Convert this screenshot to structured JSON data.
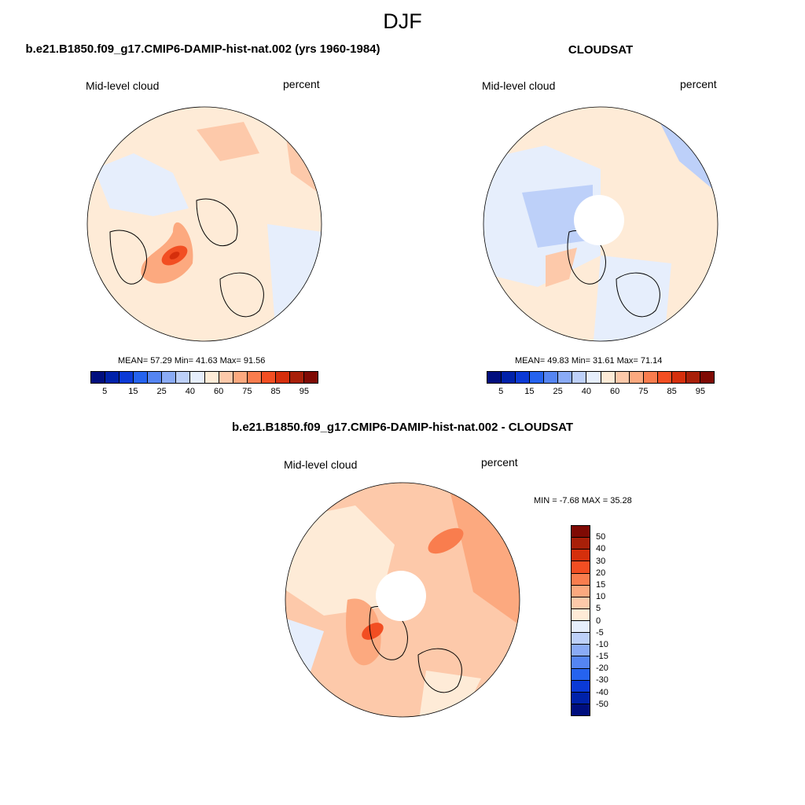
{
  "title": "DJF",
  "panels": [
    {
      "title": "b.e21.B1850.f09_g17.CMIP6-DAMIP-hist-nat.002 (yrs 1960-1984)",
      "left_label": "Mid-level cloud",
      "right_label": "percent",
      "stats": "MEAN=  57.29  Min=  41.63  Max=  91.56",
      "ticks": [
        "5",
        "15",
        "25",
        "40",
        "60",
        "75",
        "85",
        "95"
      ]
    },
    {
      "title": "CLOUDSAT",
      "left_label": "Mid-level cloud",
      "right_label": "percent",
      "stats": "MEAN=  49.83  Min=  31.61  Max=  71.14",
      "ticks": [
        "5",
        "15",
        "25",
        "40",
        "60",
        "75",
        "85",
        "95"
      ]
    },
    {
      "title": "b.e21.B1850.f09_g17.CMIP6-DAMIP-hist-nat.002 - CLOUDSAT",
      "left_label": "Mid-level cloud",
      "right_label": "percent",
      "minmax": "MIN =  -7.68 MAX =  35.28",
      "ticks": [
        "50",
        "40",
        "30",
        "20",
        "15",
        "10",
        "5",
        "0",
        "-5",
        "-10",
        "-15",
        "-20",
        "-30",
        "-40",
        "-50"
      ]
    }
  ],
  "colors": {
    "seq": [
      "#000e7e",
      "#0022aa",
      "#0b3ad6",
      "#2563ef",
      "#5585f2",
      "#8aabf6",
      "#bdd0f9",
      "#e6eefc",
      "#feebd7",
      "#fdc9aa",
      "#fca97f",
      "#f97d4e",
      "#f24e22",
      "#d52f0c",
      "#a82009",
      "#7f0a04"
    ],
    "diff": [
      "#7f0a04",
      "#a82009",
      "#d52f0c",
      "#f24e22",
      "#f97d4e",
      "#fca97f",
      "#fdc9aa",
      "#feebd7",
      "#e6eefc",
      "#bdd0f9",
      "#8aabf6",
      "#5585f2",
      "#2563ef",
      "#0b3ad6",
      "#0022aa",
      "#000e7e"
    ]
  },
  "chart_data": [
    {
      "type": "heatmap",
      "projection": "north-polar-stereographic",
      "title": "b.e21.B1850.f09_g17.CMIP6-DAMIP-hist-nat.002 (yrs 1960-1984)",
      "variable": "Mid-level cloud",
      "units": "percent",
      "mean": 57.29,
      "min": 41.63,
      "max": 91.56,
      "levels": [
        5,
        10,
        15,
        20,
        25,
        30,
        40,
        50,
        60,
        70,
        75,
        80,
        85,
        90,
        95
      ]
    },
    {
      "type": "heatmap",
      "projection": "north-polar-stereographic",
      "title": "CLOUDSAT",
      "variable": "Mid-level cloud",
      "units": "percent",
      "mean": 49.83,
      "min": 31.61,
      "max": 71.14,
      "levels": [
        5,
        10,
        15,
        20,
        25,
        30,
        40,
        50,
        60,
        70,
        75,
        80,
        85,
        90,
        95
      ]
    },
    {
      "type": "heatmap",
      "projection": "north-polar-stereographic",
      "title": "b.e21.B1850.f09_g17.CMIP6-DAMIP-hist-nat.002 - CLOUDSAT",
      "variable": "Mid-level cloud",
      "units": "percent",
      "min": -7.68,
      "max": 35.28,
      "levels": [
        -50,
        -40,
        -30,
        -20,
        -15,
        -10,
        -5,
        0,
        5,
        10,
        15,
        20,
        30,
        40,
        50
      ]
    }
  ]
}
